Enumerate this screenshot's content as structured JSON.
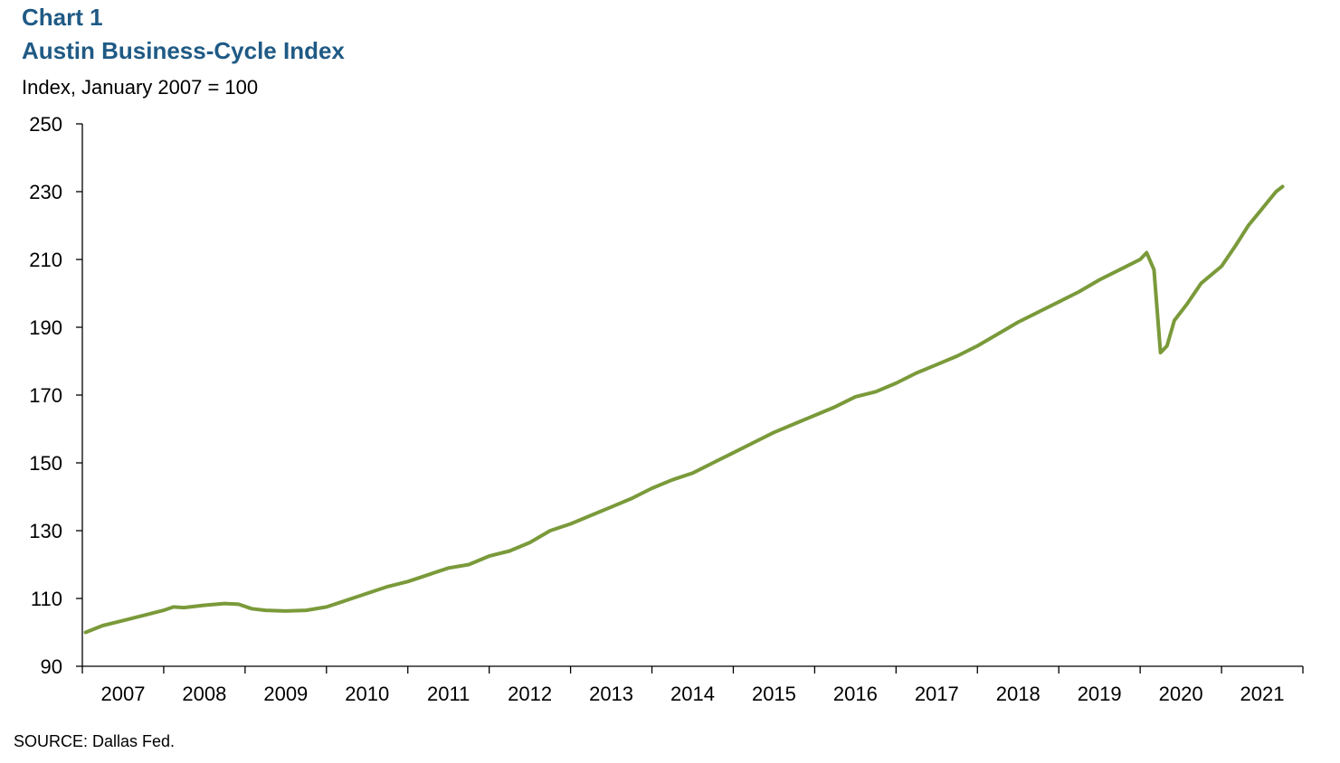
{
  "header": {
    "chart_number": "Chart 1",
    "title": "Austin Business-Cycle Index",
    "subtitle": "Index, January 2007 = 100"
  },
  "footer": {
    "source": "SOURCE: Dallas Fed."
  },
  "colors": {
    "title": "#1f5a85",
    "line": "#7a9a3a",
    "axis": "#000000"
  },
  "chart_data": {
    "type": "line",
    "title": "Austin Business-Cycle Index",
    "ylabel": "Index, January 2007 = 100",
    "xlabel": "",
    "ylim": [
      90,
      250
    ],
    "yticks": [
      90,
      110,
      130,
      150,
      170,
      190,
      210,
      230,
      250
    ],
    "xlim": [
      2007.0,
      2022.0
    ],
    "xticks": [
      2007,
      2008,
      2009,
      2010,
      2011,
      2012,
      2013,
      2014,
      2015,
      2016,
      2017,
      2018,
      2019,
      2020,
      2021,
      2022
    ],
    "xtick_labels": [
      "2007",
      "2008",
      "2009",
      "2010",
      "2011",
      "2012",
      "2013",
      "2014",
      "2015",
      "2016",
      "2017",
      "2018",
      "2019",
      "2020",
      "2021"
    ],
    "grid": false,
    "legend": "none",
    "series": [
      {
        "color": "#7a9a3a",
        "points": [
          [
            2007.04,
            100.0
          ],
          [
            2007.25,
            102.0
          ],
          [
            2007.5,
            103.5
          ],
          [
            2007.75,
            105.0
          ],
          [
            2008.0,
            106.5
          ],
          [
            2008.12,
            107.5
          ],
          [
            2008.25,
            107.3
          ],
          [
            2008.5,
            108.0
          ],
          [
            2008.75,
            108.5
          ],
          [
            2008.92,
            108.3
          ],
          [
            2009.08,
            107.0
          ],
          [
            2009.25,
            106.5
          ],
          [
            2009.5,
            106.3
          ],
          [
            2009.75,
            106.5
          ],
          [
            2010.0,
            107.5
          ],
          [
            2010.25,
            109.5
          ],
          [
            2010.5,
            111.5
          ],
          [
            2010.75,
            113.5
          ],
          [
            2011.0,
            115.0
          ],
          [
            2011.25,
            117.0
          ],
          [
            2011.5,
            119.0
          ],
          [
            2011.75,
            120.0
          ],
          [
            2012.0,
            122.5
          ],
          [
            2012.25,
            124.0
          ],
          [
            2012.5,
            126.5
          ],
          [
            2012.75,
            130.0
          ],
          [
            2013.0,
            132.0
          ],
          [
            2013.25,
            134.5
          ],
          [
            2013.5,
            137.0
          ],
          [
            2013.75,
            139.5
          ],
          [
            2014.0,
            142.5
          ],
          [
            2014.25,
            145.0
          ],
          [
            2014.5,
            147.0
          ],
          [
            2014.75,
            150.0
          ],
          [
            2015.0,
            153.0
          ],
          [
            2015.25,
            156.0
          ],
          [
            2015.5,
            159.0
          ],
          [
            2015.75,
            161.5
          ],
          [
            2016.0,
            164.0
          ],
          [
            2016.25,
            166.5
          ],
          [
            2016.5,
            169.5
          ],
          [
            2016.75,
            171.0
          ],
          [
            2017.0,
            173.5
          ],
          [
            2017.25,
            176.5
          ],
          [
            2017.5,
            179.0
          ],
          [
            2017.75,
            181.5
          ],
          [
            2018.0,
            184.5
          ],
          [
            2018.25,
            188.0
          ],
          [
            2018.5,
            191.5
          ],
          [
            2018.75,
            194.5
          ],
          [
            2019.0,
            197.5
          ],
          [
            2019.25,
            200.5
          ],
          [
            2019.5,
            204.0
          ],
          [
            2019.75,
            207.0
          ],
          [
            2020.0,
            210.0
          ],
          [
            2020.08,
            212.0
          ],
          [
            2020.17,
            207.0
          ],
          [
            2020.25,
            182.5
          ],
          [
            2020.33,
            184.5
          ],
          [
            2020.42,
            192.0
          ],
          [
            2020.58,
            197.0
          ],
          [
            2020.75,
            203.0
          ],
          [
            2021.0,
            208.0
          ],
          [
            2021.17,
            214.0
          ],
          [
            2021.33,
            220.0
          ],
          [
            2021.5,
            225.0
          ],
          [
            2021.67,
            230.0
          ],
          [
            2021.75,
            231.5
          ]
        ]
      }
    ]
  }
}
